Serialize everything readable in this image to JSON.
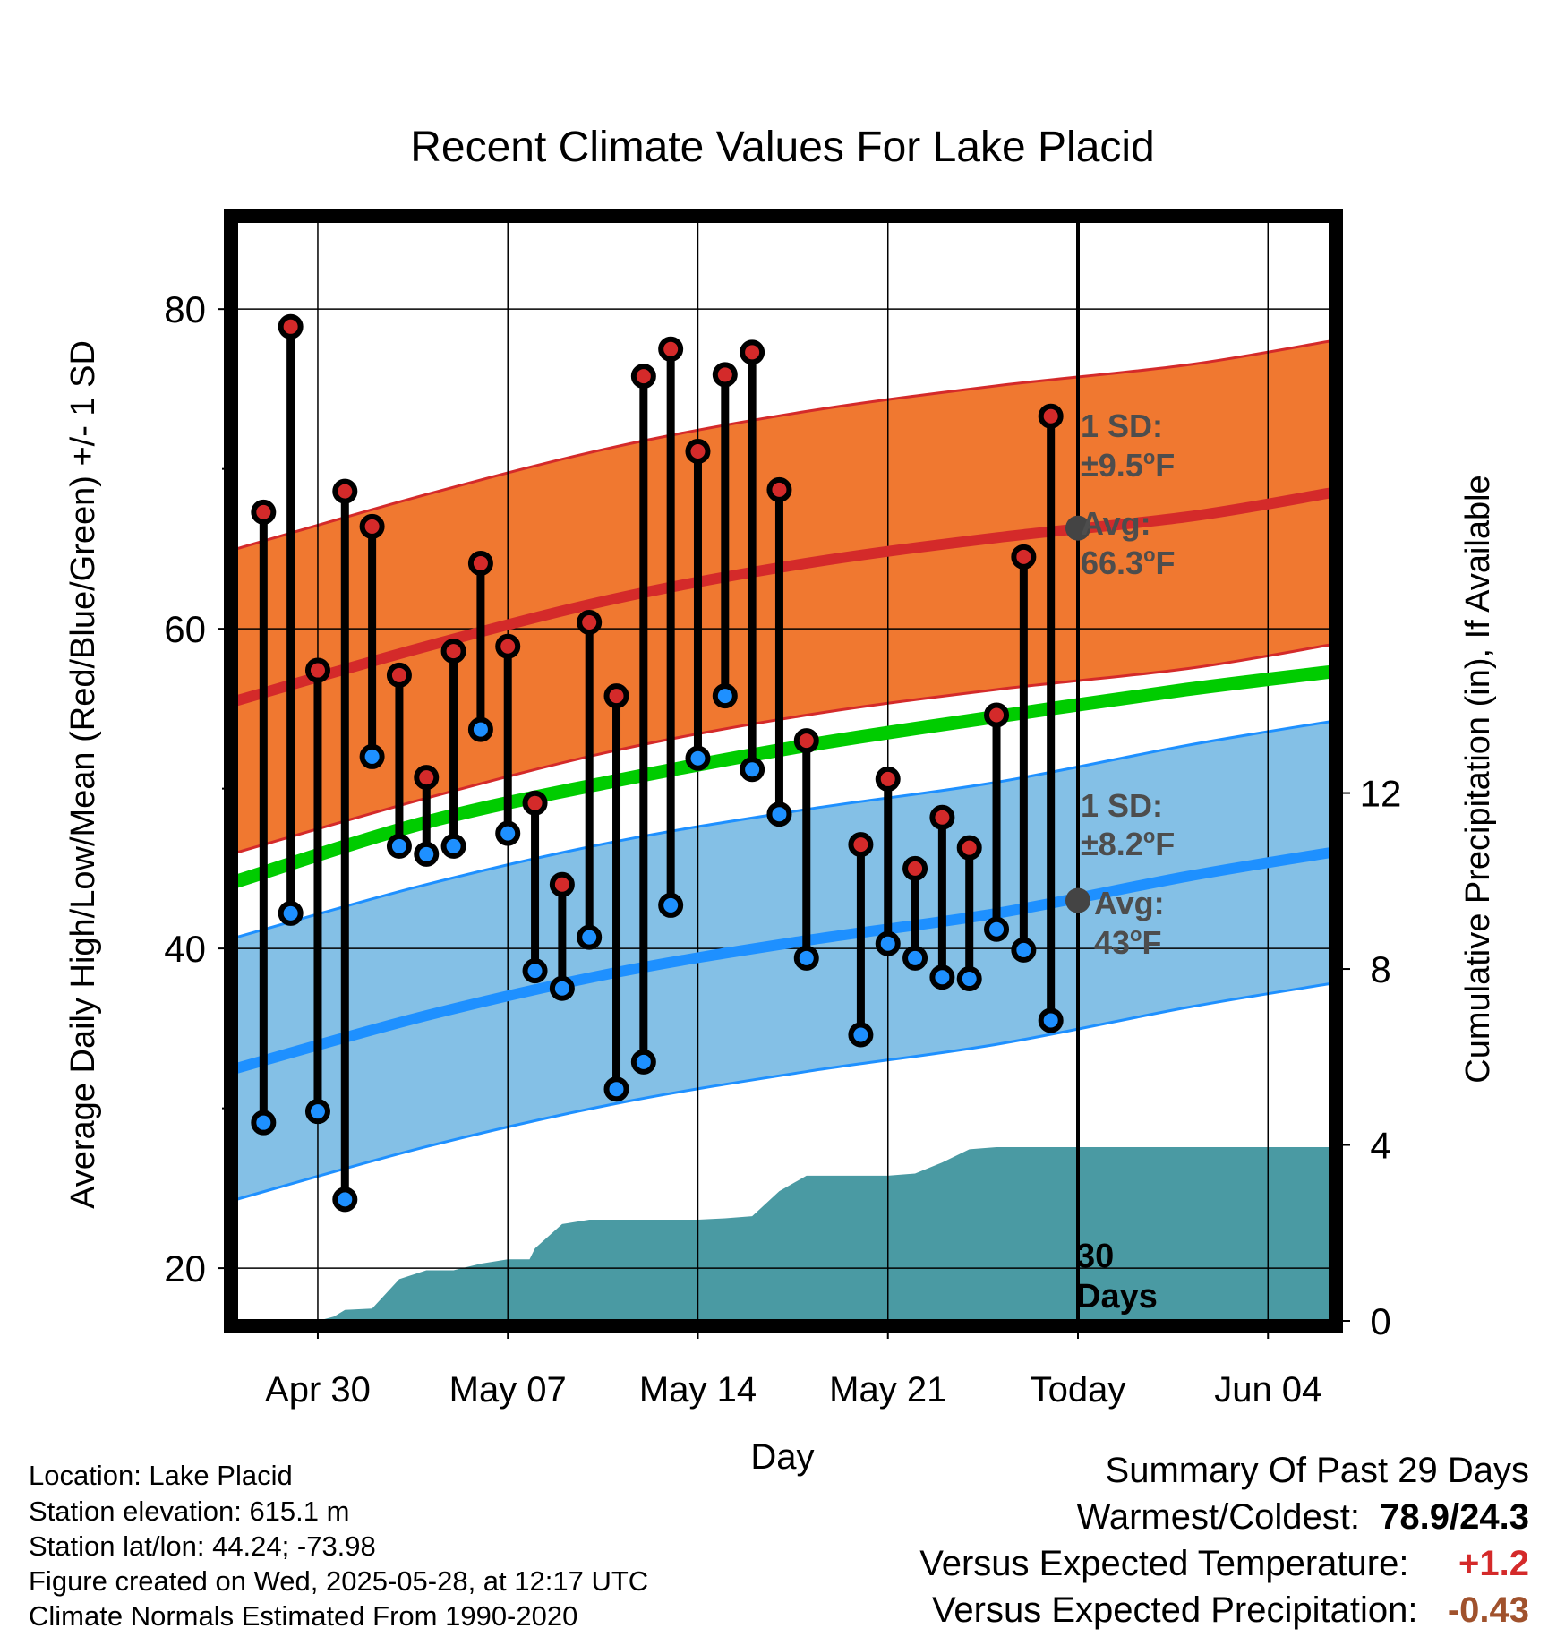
{
  "chart_data": {
    "type": "line",
    "title": "Recent Climate Values For Lake Placid",
    "xlabel": "Day",
    "ylabel": "Average Daily High/Low/Mean (Red/Blue/Green) +/- 1 SD",
    "y2label": "Cumulative Precipitation (in), If Available",
    "x_tick_labels": [
      "Apr 30",
      "May 07",
      "May 14",
      "May 21",
      "Today",
      "Jun 04"
    ],
    "x_tick_days": [
      0,
      7,
      14,
      21,
      28,
      35
    ],
    "xlim": [
      -3,
      37.3
    ],
    "ylim": [
      16.7,
      85.5
    ],
    "y_ticks": [
      20,
      40,
      60,
      80
    ],
    "y2lim": [
      0,
      25
    ],
    "y2_ticks": [
      0,
      4,
      8,
      12
    ],
    "grid": true,
    "today_day": 28,
    "today_label": "30\nDays",
    "normals": {
      "days": [
        -3,
        4,
        11,
        18,
        25,
        32,
        37.3
      ],
      "high_avg": [
        55.5,
        58.9,
        61.9,
        64.1,
        65.7,
        67.0,
        68.5
      ],
      "high_sd": 9.5,
      "low_avg": [
        32.5,
        35.8,
        38.5,
        40.5,
        42.2,
        44.5,
        46.0
      ],
      "low_sd": 8.2,
      "mean_avg": [
        44.2,
        47.9,
        50.5,
        52.7,
        54.5,
        56.2,
        57.3
      ]
    },
    "series": [
      {
        "name": "High",
        "color": "#d42a2a",
        "days": [
          -2,
          -1,
          0,
          1,
          2,
          3,
          4,
          5,
          6,
          7,
          8,
          9,
          10,
          11,
          12,
          13,
          14,
          15,
          16,
          17,
          18,
          20,
          21,
          22,
          23,
          24,
          25,
          26,
          27
        ],
        "values": [
          67.3,
          78.9,
          57.4,
          68.6,
          66.4,
          57.1,
          50.7,
          58.6,
          64.1,
          58.9,
          49.1,
          44.0,
          60.4,
          55.8,
          75.8,
          77.5,
          71.1,
          75.9,
          77.3,
          68.7,
          53.0,
          46.5,
          50.6,
          45.0,
          48.2,
          46.3,
          54.6,
          64.5,
          73.3
        ]
      },
      {
        "name": "Low",
        "color": "#1e90ff",
        "days": [
          -2,
          -1,
          0,
          1,
          2,
          3,
          4,
          5,
          6,
          7,
          8,
          9,
          10,
          11,
          12,
          13,
          14,
          15,
          16,
          17,
          18,
          20,
          21,
          22,
          23,
          24,
          25,
          26,
          27
        ],
        "values": [
          29.1,
          42.2,
          29.8,
          24.3,
          52.0,
          46.4,
          45.9,
          46.4,
          53.7,
          47.2,
          38.6,
          37.5,
          40.7,
          31.2,
          32.9,
          42.7,
          51.9,
          55.8,
          51.2,
          48.4,
          39.4,
          34.6,
          40.3,
          39.4,
          38.2,
          38.1,
          41.2,
          39.9,
          35.5
        ]
      }
    ],
    "precip": {
      "days": [
        -3,
        -2,
        -1,
        0,
        0.6,
        1,
        2,
        3,
        4,
        5,
        6,
        7,
        7.8,
        8,
        9,
        10,
        11,
        12,
        13,
        14,
        15,
        16,
        17,
        18,
        19,
        20,
        21,
        22,
        23,
        24,
        25,
        26,
        27,
        28,
        29,
        30,
        31,
        32,
        33,
        34,
        35,
        36,
        37.3
      ],
      "values": [
        0,
        0,
        0,
        0,
        0.1,
        0.25,
        0.28,
        0.95,
        1.15,
        1.15,
        1.3,
        1.4,
        1.4,
        1.65,
        2.2,
        2.3,
        2.3,
        2.3,
        2.3,
        2.3,
        2.33,
        2.38,
        2.95,
        3.3,
        3.3,
        3.3,
        3.3,
        3.35,
        3.6,
        3.9,
        3.95,
        3.95,
        3.95,
        3.95,
        3.95,
        3.95,
        3.95,
        3.95,
        3.95,
        3.95,
        3.95,
        3.95,
        3.95
      ]
    },
    "annotations": {
      "high_sd_text": "1 SD:",
      "high_sd_value": "±9.5",
      "high_avg_text": "Avg:",
      "high_avg_value": "66.3",
      "high_avg_marker": 66.3,
      "low_sd_text": "1 SD:",
      "low_sd_value": "±8.2",
      "low_avg_text": "Avg:",
      "low_avg_value": "43",
      "low_avg_marker": 43.0,
      "unit_sup": "o",
      "unit_letter": "F"
    },
    "colors": {
      "high_band": "#f07830",
      "high_line": "#d42a2a",
      "low_band": "#84c0e6",
      "low_line": "#1e90ff",
      "mean_line": "#00cc00",
      "precip": "#4a9aa3",
      "annotation": "#4d4d4d"
    }
  },
  "footer": {
    "location": "Location: Lake Placid",
    "elevation": "Station elevation: 615.1 m",
    "latlon": "Station lat/lon: 44.24; -73.98",
    "created": "Figure created on Wed, 2025-05-28, at 12:17 UTC",
    "normals": "Climate Normals Estimated From 1990-2020"
  },
  "summary": {
    "title": "Summary Of Past 29 Days",
    "warm_cold_label": "Warmest/Coldest:",
    "warm_cold_value": "78.9/24.3",
    "temp_label": "Versus Expected Temperature:",
    "temp_value": "+1.2",
    "temp_color": "#d42a2a",
    "precip_label": "Versus Expected Precipitation:",
    "precip_value": "-0.43",
    "precip_color": "#a0522d"
  }
}
